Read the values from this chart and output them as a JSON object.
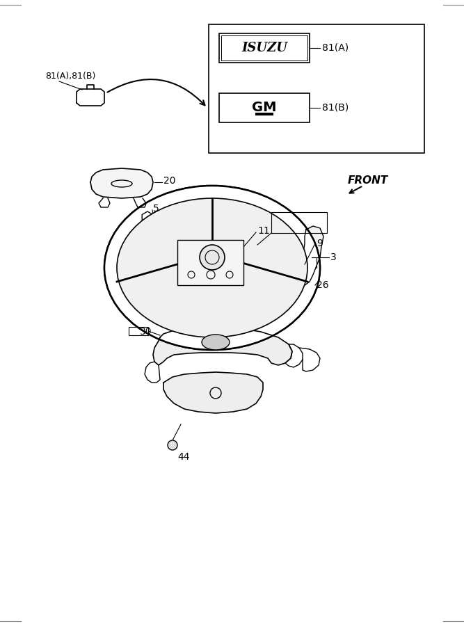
{
  "bg_color": "#ffffff",
  "line_color": "#000000",
  "part_numbers": {
    "81A": "81(A)",
    "81B": "81(B)",
    "20": "20",
    "5": "5",
    "11": "11",
    "9": "9",
    "3": "3",
    "26": "26",
    "30": "30",
    "44": "44"
  },
  "label_81AB": "81(A),81(B)",
  "front_label": "FRONT",
  "isuzu_text": "ISUZU",
  "gm_text": "GM"
}
